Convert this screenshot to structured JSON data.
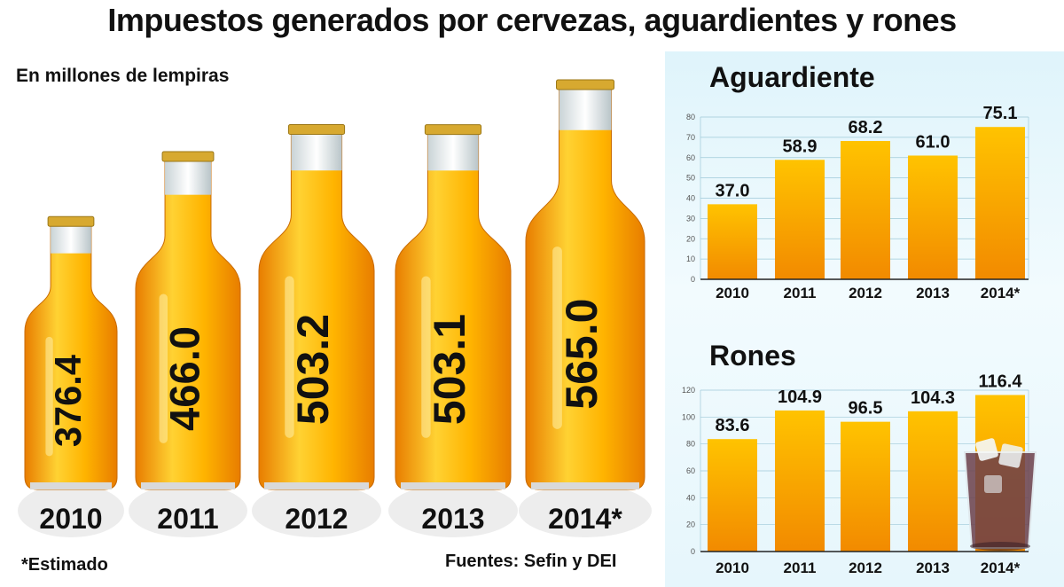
{
  "title": "Impuestos generados por cervezas, aguardientes y rones",
  "subtitle": "En millones de lempiras",
  "note": "*Estimado",
  "source": "Fuentes: Sefin y DEI",
  "colors": {
    "bar_top": "#ffc300",
    "bar_bottom": "#f28a00",
    "beer_light": "#ffd233",
    "beer_dark": "#e87d00",
    "cap": "#d7a930",
    "panel_bg": "#e3f5fb"
  },
  "chart_data": [
    {
      "type": "bar",
      "name": "Cervezas",
      "title": "",
      "categories": [
        "2010",
        "2011",
        "2012",
        "2013",
        "2014*"
      ],
      "values": [
        376.4,
        466.0,
        503.2,
        503.1,
        565.0
      ],
      "value_labels": [
        "376.4",
        "466.0",
        "503.2",
        "503.1",
        "565.0"
      ],
      "style": "beer bottles",
      "grid": false,
      "legend": "none"
    },
    {
      "type": "bar",
      "title": "Aguardiente",
      "categories": [
        "2010",
        "2011",
        "2012",
        "2013",
        "2014*"
      ],
      "values": [
        37.0,
        58.9,
        68.2,
        61.0,
        75.1
      ],
      "value_labels": [
        "37.0",
        "58.9",
        "68.2",
        "61.0",
        "75.1"
      ],
      "yticks": [
        "0",
        "10",
        "20",
        "30",
        "40",
        "50",
        "60",
        "70",
        "80"
      ],
      "ylim": [
        0,
        80
      ],
      "grid": true,
      "legend": "none"
    },
    {
      "type": "bar",
      "title": "Rones",
      "categories": [
        "2010",
        "2011",
        "2012",
        "2013",
        "2014*"
      ],
      "values": [
        83.6,
        104.9,
        96.5,
        104.3,
        116.4
      ],
      "value_labels": [
        "83.6",
        "104.9",
        "96.5",
        "104.3",
        "116.4"
      ],
      "yticks": [
        "0",
        "20",
        "40",
        "60",
        "80",
        "100",
        "120"
      ],
      "ylim": [
        0,
        120
      ],
      "grid": true,
      "legend": "none"
    }
  ]
}
